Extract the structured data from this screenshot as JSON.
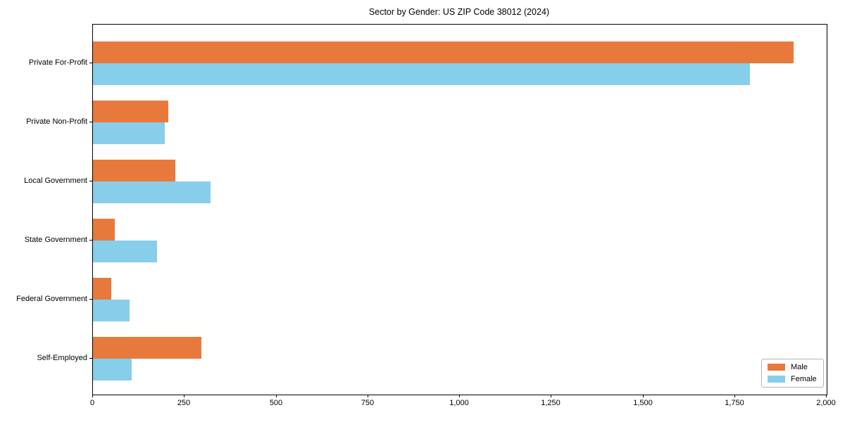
{
  "chart_data": {
    "type": "bar",
    "orientation": "horizontal",
    "title": "Sector by Gender: US ZIP Code 38012 (2024)",
    "xlabel": "",
    "ylabel": "",
    "categories": [
      "Private For-Profit",
      "Private Non-Profit",
      "Local Government",
      "State Government",
      "Federal Government",
      "Self-Employed"
    ],
    "series": [
      {
        "name": "Male",
        "color": "#e8793d",
        "values": [
          1910,
          205,
          225,
          60,
          50,
          295
        ]
      },
      {
        "name": "Female",
        "color": "#87ceeb",
        "values": [
          1790,
          195,
          320,
          175,
          100,
          105
        ]
      }
    ],
    "xlim": [
      0,
      2000
    ],
    "xticks": [
      0,
      250,
      500,
      750,
      1000,
      1250,
      1500,
      1750,
      2000
    ],
    "xtick_labels": [
      "0",
      "250",
      "500",
      "750",
      "1,000",
      "1,250",
      "1,500",
      "1,750",
      "2,000"
    ],
    "grid": false,
    "legend_position": "lower right",
    "axis_color": "#000000"
  }
}
